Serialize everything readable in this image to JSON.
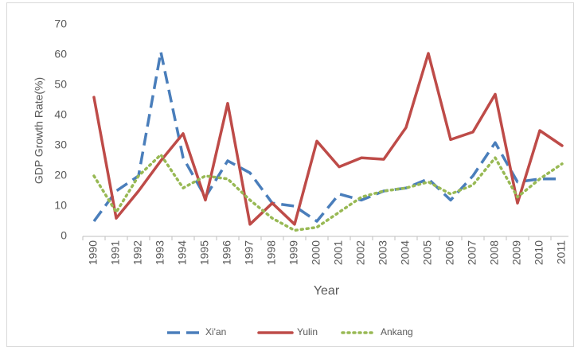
{
  "chart_data": {
    "type": "line",
    "y_label": "GDP Growth Rate(%)",
    "x_label": "Year",
    "categories": [
      "1990",
      "1991",
      "1992",
      "1993",
      "1994",
      "1995",
      "1996",
      "1997",
      "1998",
      "1999",
      "2000",
      "2001",
      "2002",
      "2003",
      "2004",
      "2005",
      "2006",
      "2007",
      "2008",
      "2009",
      "2010",
      "2011"
    ],
    "series": [
      {
        "name": "Xi'an",
        "color": "#4a7ebb",
        "dash": "dashed",
        "values": [
          5,
          15,
          20,
          61,
          26,
          13,
          25,
          21,
          11,
          10,
          5,
          14,
          12,
          15,
          16,
          19,
          12,
          20,
          31,
          18,
          19,
          19
        ]
      },
      {
        "name": "Yulin",
        "color": "#be4b48",
        "dash": "solid",
        "values": [
          46,
          6,
          15,
          25,
          34,
          12,
          44,
          4,
          11,
          4,
          31.5,
          23,
          26,
          25.5,
          36,
          60.5,
          32,
          34.5,
          47,
          11,
          35,
          30
        ]
      },
      {
        "name": "Ankang",
        "color": "#98b954",
        "dash": "dotted",
        "values": [
          20,
          8,
          20,
          27,
          16,
          20,
          19,
          12,
          6,
          2,
          3,
          8,
          13,
          15,
          16,
          18,
          14,
          17,
          26,
          13,
          19,
          24
        ]
      }
    ],
    "ylim": [
      0,
      70
    ],
    "yticks": [
      0,
      10,
      20,
      30,
      40,
      50,
      60,
      70
    ],
    "grid": false,
    "legend": "bottom"
  }
}
